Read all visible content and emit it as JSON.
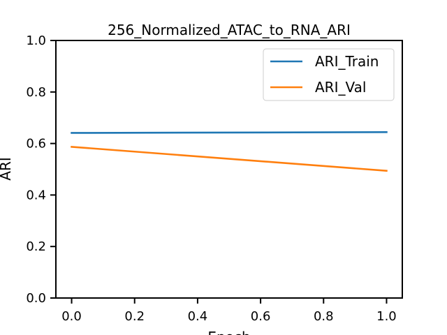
{
  "chart_data": {
    "type": "line",
    "title": "256_Normalized_ATAC_to_RNA_ARI",
    "xlabel": "Epoch",
    "ylabel": "ARI",
    "xlim": [
      -0.05,
      1.05
    ],
    "ylim": [
      0.0,
      1.0
    ],
    "x_ticks": [
      "0.0",
      "0.2",
      "0.4",
      "0.6",
      "0.8",
      "1.0"
    ],
    "y_ticks": [
      "0.0",
      "0.2",
      "0.4",
      "0.6",
      "0.8",
      "1.0"
    ],
    "grid": false,
    "legend_position": "top-right",
    "series": [
      {
        "name": "ARI_Train",
        "color": "#1f77b4",
        "x": [
          0.0,
          1.0
        ],
        "y": [
          0.641,
          0.644
        ]
      },
      {
        "name": "ARI_Val",
        "color": "#ff7f0e",
        "x": [
          0.0,
          1.0
        ],
        "y": [
          0.587,
          0.494
        ]
      }
    ]
  }
}
